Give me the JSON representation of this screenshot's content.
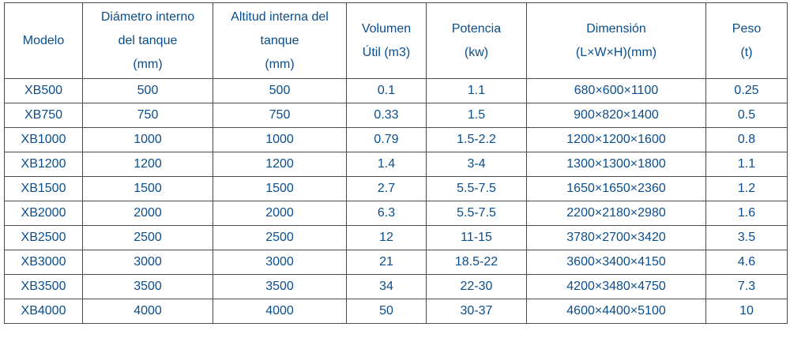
{
  "table": {
    "headers": [
      {
        "key": "modelo",
        "lines": [
          "Modelo"
        ]
      },
      {
        "key": "diametro",
        "lines": [
          "Diámetro interno",
          "del tanque",
          "(mm)"
        ]
      },
      {
        "key": "altitud",
        "lines": [
          "Altitud interna del",
          "tanque",
          "(mm)"
        ]
      },
      {
        "key": "volumen",
        "lines": [
          "Volumen",
          "Útil (m3)"
        ]
      },
      {
        "key": "potencia",
        "lines": [
          "Potencia",
          "(kw)"
        ]
      },
      {
        "key": "dimension",
        "lines": [
          "Dimensión",
          "(L×W×H)(mm)"
        ]
      },
      {
        "key": "peso",
        "lines": [
          "Peso",
          "(t)"
        ]
      }
    ],
    "rows": [
      [
        "XB500",
        "500",
        "500",
        "0.1",
        "1.1",
        "680×600×1100",
        "0.25"
      ],
      [
        "XB750",
        "750",
        "750",
        "0.33",
        "1.5",
        "900×820×1400",
        "0.5"
      ],
      [
        "XB1000",
        "1000",
        "1000",
        "0.79",
        "1.5-2.2",
        "1200×1200×1600",
        "0.8"
      ],
      [
        "XB1200",
        "1200",
        "1200",
        "1.4",
        "3-4",
        "1300×1300×1800",
        "1.1"
      ],
      [
        "XB1500",
        "1500",
        "1500",
        "2.7",
        "5.5-7.5",
        "1650×1650×2360",
        "1.2"
      ],
      [
        "XB2000",
        "2000",
        "2000",
        "6.3",
        "5.5-7.5",
        "2200×2180×2980",
        "1.6"
      ],
      [
        "XB2500",
        "2500",
        "2500",
        "12",
        "11-15",
        "3780×2700×3420",
        "3.5"
      ],
      [
        "XB3000",
        "3000",
        "3000",
        "21",
        "18.5-22",
        "3600×3400×4150",
        "4.6"
      ],
      [
        "XB3500",
        "3500",
        "3500",
        "34",
        "22-30",
        "4200×3480×4750",
        "7.3"
      ],
      [
        "XB4000",
        "4000",
        "4000",
        "50",
        "30-37",
        "4600×4400×5100",
        "10"
      ]
    ]
  },
  "colors": {
    "text": "#0a4d8c",
    "border": "#4a4a4a",
    "background": "#ffffff"
  }
}
